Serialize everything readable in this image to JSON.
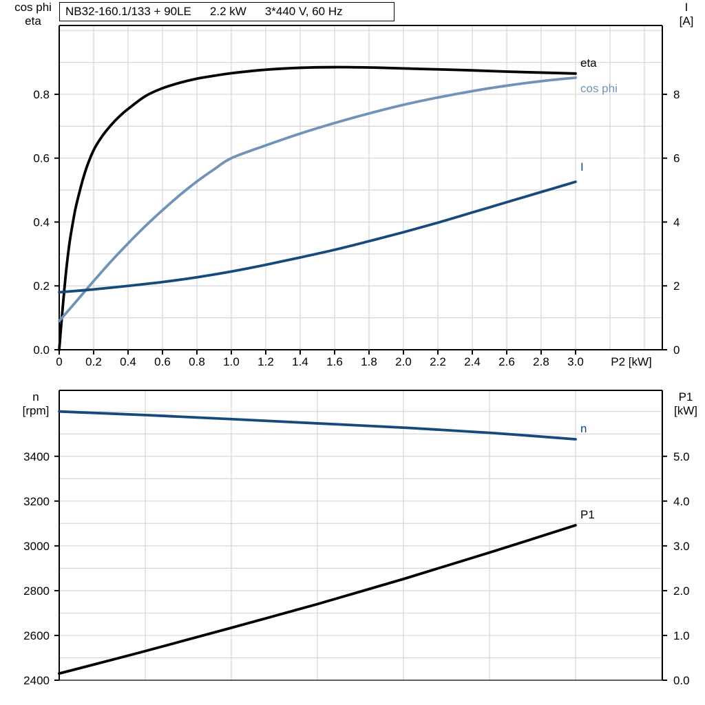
{
  "title": {
    "parts": [
      "NB32-160.1/133 + 90LE",
      "2.2 kW",
      "3*440 V, 60 Hz"
    ]
  },
  "corner_labels": {
    "top_left": [
      "cos phi",
      "eta"
    ],
    "top_right": [
      "I",
      "[A]"
    ],
    "bottom_left": [
      "n",
      "[rpm]"
    ],
    "bottom_right": [
      "P1",
      "[kW]"
    ]
  },
  "colors": {
    "black": "#000000",
    "dark_blue": "#154A7B",
    "light_blue": "#7193B8",
    "grid": "#d6d6d6",
    "axis": "#000000"
  },
  "chart_data": [
    {
      "id": "top",
      "type": "line",
      "title": "NB32-160.1/133 + 90LE  2.2 kW  3*440 V, 60 Hz",
      "x": {
        "label": "P2 [kW]",
        "min": 0,
        "max": 3.0,
        "ticks": [
          {
            "v": 0,
            "label": "0"
          },
          {
            "v": 0.2,
            "label": "0.2"
          },
          {
            "v": 0.4,
            "label": "0.4"
          },
          {
            "v": 0.6,
            "label": "0.6"
          },
          {
            "v": 0.8,
            "label": "0.8"
          },
          {
            "v": 1.0,
            "label": "1.0"
          },
          {
            "v": 1.2,
            "label": "1.2"
          },
          {
            "v": 1.4,
            "label": "1.4"
          },
          {
            "v": 1.6,
            "label": "1.6"
          },
          {
            "v": 1.8,
            "label": "1.8"
          },
          {
            "v": 2.0,
            "label": "2.0"
          },
          {
            "v": 2.2,
            "label": "2.2"
          },
          {
            "v": 2.4,
            "label": "2.4"
          },
          {
            "v": 2.6,
            "label": "2.6"
          },
          {
            "v": 2.8,
            "label": "2.8"
          },
          {
            "v": 3.0,
            "label": "3.0"
          }
        ]
      },
      "y_left": {
        "label": "cos phi / eta",
        "min": 0,
        "max": 1.0,
        "ticks": [
          {
            "v": 0,
            "label": "0.0"
          },
          {
            "v": 0.2,
            "label": "0.2"
          },
          {
            "v": 0.4,
            "label": "0.4"
          },
          {
            "v": 0.6,
            "label": "0.6"
          },
          {
            "v": 0.8,
            "label": "0.8"
          }
        ]
      },
      "y_right": {
        "label": "I [A]",
        "min": 0,
        "max": 10,
        "ticks": [
          {
            "v": 0,
            "label": "0"
          },
          {
            "v": 2,
            "label": "2"
          },
          {
            "v": 4,
            "label": "4"
          },
          {
            "v": 6,
            "label": "6"
          },
          {
            "v": 8,
            "label": "8"
          }
        ]
      },
      "series": [
        {
          "name": "eta",
          "axis": "left",
          "color_key": "black",
          "label": "eta",
          "points": [
            [
              0,
              0
            ],
            [
              0.02,
              0.13
            ],
            [
              0.04,
              0.245
            ],
            [
              0.06,
              0.335
            ],
            [
              0.08,
              0.4
            ],
            [
              0.1,
              0.455
            ],
            [
              0.15,
              0.556
            ],
            [
              0.2,
              0.625
            ],
            [
              0.25,
              0.669
            ],
            [
              0.3,
              0.703
            ],
            [
              0.35,
              0.731
            ],
            [
              0.4,
              0.754
            ],
            [
              0.5,
              0.794
            ],
            [
              0.6,
              0.819
            ],
            [
              0.7,
              0.836
            ],
            [
              0.8,
              0.849
            ],
            [
              0.9,
              0.858
            ],
            [
              1.0,
              0.866
            ],
            [
              1.2,
              0.877
            ],
            [
              1.4,
              0.883
            ],
            [
              1.6,
              0.885
            ],
            [
              1.8,
              0.884
            ],
            [
              2.0,
              0.881
            ],
            [
              2.2,
              0.878
            ],
            [
              2.4,
              0.875
            ],
            [
              2.6,
              0.871
            ],
            [
              2.8,
              0.868
            ],
            [
              3.0,
              0.865
            ]
          ]
        },
        {
          "name": "cos-phi",
          "axis": "left",
          "color_key": "light_blue",
          "label": "cos phi",
          "points": [
            [
              0,
              0.09
            ],
            [
              0.1,
              0.152
            ],
            [
              0.2,
              0.215
            ],
            [
              0.3,
              0.276
            ],
            [
              0.4,
              0.333
            ],
            [
              0.5,
              0.387
            ],
            [
              0.6,
              0.437
            ],
            [
              0.7,
              0.484
            ],
            [
              0.8,
              0.527
            ],
            [
              0.9,
              0.565
            ],
            [
              1.0,
              0.6
            ],
            [
              1.2,
              0.64
            ],
            [
              1.4,
              0.677
            ],
            [
              1.6,
              0.71
            ],
            [
              1.8,
              0.74
            ],
            [
              2.0,
              0.767
            ],
            [
              2.2,
              0.79
            ],
            [
              2.4,
              0.81
            ],
            [
              2.6,
              0.827
            ],
            [
              2.8,
              0.841
            ],
            [
              3.0,
              0.852
            ]
          ]
        },
        {
          "name": "I",
          "axis": "right",
          "color_key": "dark_blue",
          "label": "I",
          "points": [
            [
              0,
              1.8
            ],
            [
              0.2,
              1.89
            ],
            [
              0.4,
              2.0
            ],
            [
              0.6,
              2.12
            ],
            [
              0.8,
              2.27
            ],
            [
              1.0,
              2.45
            ],
            [
              1.2,
              2.66
            ],
            [
              1.4,
              2.89
            ],
            [
              1.6,
              3.13
            ],
            [
              1.8,
              3.4
            ],
            [
              2.0,
              3.68
            ],
            [
              2.2,
              3.98
            ],
            [
              2.4,
              4.3
            ],
            [
              2.6,
              4.62
            ],
            [
              2.8,
              4.94
            ],
            [
              3.0,
              5.26
            ]
          ]
        }
      ]
    },
    {
      "id": "bottom",
      "type": "line",
      "x": {
        "label": "",
        "min": 0,
        "max": 3.0,
        "ticks": []
      },
      "y_left": {
        "label": "n [rpm]",
        "min": 2400,
        "max": 3695,
        "ticks": [
          {
            "v": 2400,
            "label": "2400"
          },
          {
            "v": 2600,
            "label": "2600"
          },
          {
            "v": 2800,
            "label": "2800"
          },
          {
            "v": 3000,
            "label": "3000"
          },
          {
            "v": 3200,
            "label": "3200"
          },
          {
            "v": 3400,
            "label": "3400"
          }
        ]
      },
      "y_right": {
        "label": "P1 [kW]",
        "min": 0,
        "max": 6.48,
        "ticks": [
          {
            "v": 0,
            "label": "0.0"
          },
          {
            "v": 1,
            "label": "1.0"
          },
          {
            "v": 2,
            "label": "2.0"
          },
          {
            "v": 3,
            "label": "3.0"
          },
          {
            "v": 4,
            "label": "4.0"
          },
          {
            "v": 5,
            "label": "5.0"
          }
        ]
      },
      "series": [
        {
          "name": "n",
          "axis": "left",
          "color_key": "dark_blue",
          "label": "n",
          "points": [
            [
              0,
              3600
            ],
            [
              0.5,
              3584
            ],
            [
              1.0,
              3566
            ],
            [
              1.5,
              3547
            ],
            [
              2.0,
              3528
            ],
            [
              2.5,
              3505
            ],
            [
              3.0,
              3476
            ]
          ]
        },
        {
          "name": "P1",
          "axis": "right",
          "color_key": "black",
          "label": "P1",
          "points": [
            [
              0,
              0.15
            ],
            [
              0.5,
              0.65
            ],
            [
              1.0,
              1.17
            ],
            [
              1.5,
              1.7
            ],
            [
              2.0,
              2.26
            ],
            [
              2.5,
              2.85
            ],
            [
              3.0,
              3.46
            ]
          ]
        }
      ]
    }
  ]
}
